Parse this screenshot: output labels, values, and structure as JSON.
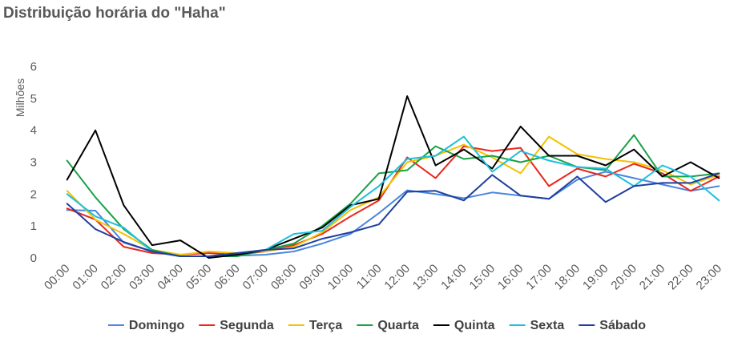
{
  "chart_data": {
    "type": "line",
    "title": "Distribuição horária do \"Haha\"",
    "xlabel": "",
    "ylabel": "Milhões",
    "ylim": [
      0,
      6
    ],
    "yticks": [
      "0",
      "1",
      "2",
      "3",
      "4",
      "5",
      "6"
    ],
    "grid": false,
    "legend_position": "bottom",
    "categories": [
      "00:00",
      "01:00",
      "02:00",
      "03:00",
      "04:00",
      "05:00",
      "06:00",
      "07:00",
      "08:00",
      "09:00",
      "10:00",
      "11:00",
      "12:00",
      "13:00",
      "14:00",
      "15:00",
      "16:00",
      "17:00",
      "18:00",
      "19:00",
      "20:00",
      "21:00",
      "22:00",
      "23:00"
    ],
    "series": [
      {
        "name": "Domingo",
        "color": "#4A86E0",
        "values": [
          1.5,
          1.48,
          0.48,
          0.2,
          0.05,
          0.05,
          0.07,
          0.1,
          0.2,
          0.45,
          0.75,
          1.4,
          2.12,
          2.0,
          1.87,
          2.05,
          1.95,
          1.85,
          2.45,
          2.7,
          2.5,
          2.3,
          2.1,
          2.25
        ]
      },
      {
        "name": "Segunda",
        "color": "#E8281E",
        "values": [
          1.55,
          1.2,
          0.35,
          0.15,
          0.1,
          0.15,
          0.1,
          0.2,
          0.4,
          0.75,
          1.3,
          1.8,
          3.15,
          2.5,
          3.5,
          3.35,
          3.45,
          2.25,
          2.8,
          2.55,
          2.95,
          2.65,
          2.1,
          2.55
        ]
      },
      {
        "name": "Terça",
        "color": "#F2C200",
        "values": [
          2.1,
          1.2,
          0.75,
          0.25,
          0.1,
          0.2,
          0.15,
          0.2,
          0.35,
          0.8,
          1.5,
          1.9,
          3.0,
          3.2,
          3.55,
          3.15,
          2.65,
          3.8,
          3.25,
          3.1,
          3.0,
          2.75,
          2.3,
          2.6
        ]
      },
      {
        "name": "Quarta",
        "color": "#16A146",
        "values": [
          3.05,
          1.9,
          0.9,
          0.25,
          0.05,
          0.05,
          0.05,
          0.25,
          0.45,
          1.0,
          1.7,
          2.65,
          2.75,
          3.5,
          3.1,
          3.2,
          3.0,
          3.2,
          2.85,
          2.75,
          3.85,
          2.55,
          2.55,
          2.65
        ]
      },
      {
        "name": "Quinta",
        "color": "#000000",
        "values": [
          2.45,
          4.0,
          1.65,
          0.4,
          0.55,
          0.0,
          0.1,
          0.25,
          0.6,
          0.95,
          1.65,
          1.85,
          5.07,
          2.9,
          3.4,
          2.8,
          4.12,
          3.2,
          3.2,
          2.9,
          3.4,
          2.55,
          3.0,
          2.5
        ]
      },
      {
        "name": "Sexta",
        "color": "#1DBFDE",
        "values": [
          2.0,
          1.3,
          0.95,
          0.2,
          0.05,
          0.05,
          0.15,
          0.25,
          0.75,
          0.85,
          1.6,
          2.25,
          3.1,
          3.2,
          3.8,
          2.7,
          3.35,
          3.05,
          2.85,
          2.8,
          2.25,
          2.9,
          2.55,
          1.8
        ]
      },
      {
        "name": "Sábado",
        "color": "#1F3FA0",
        "values": [
          1.7,
          0.9,
          0.5,
          0.2,
          0.05,
          0.05,
          0.15,
          0.25,
          0.3,
          0.6,
          0.8,
          1.05,
          2.07,
          2.1,
          1.8,
          2.6,
          1.95,
          1.85,
          2.55,
          1.75,
          2.25,
          2.35,
          2.35,
          2.65
        ]
      }
    ]
  }
}
